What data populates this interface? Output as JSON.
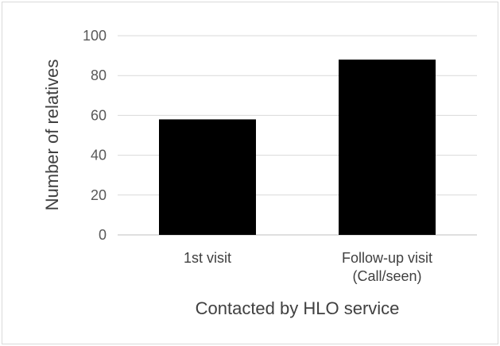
{
  "chart_data": {
    "type": "bar",
    "title": "",
    "categories": [
      [
        "1st visit"
      ],
      [
        "Follow-up visit",
        "(Call/seen)"
      ]
    ],
    "values": [
      58,
      88
    ],
    "xlabel": "Contacted by HLO service",
    "ylabel": "Number of relatives",
    "ylim": [
      0,
      100
    ],
    "yticks": [
      0,
      20,
      40,
      60,
      80,
      100
    ],
    "grid": true,
    "legend": "none",
    "colors": {
      "bar": "#000000",
      "grid": "#d9d9d9",
      "axis": "#bfbfbf"
    }
  }
}
